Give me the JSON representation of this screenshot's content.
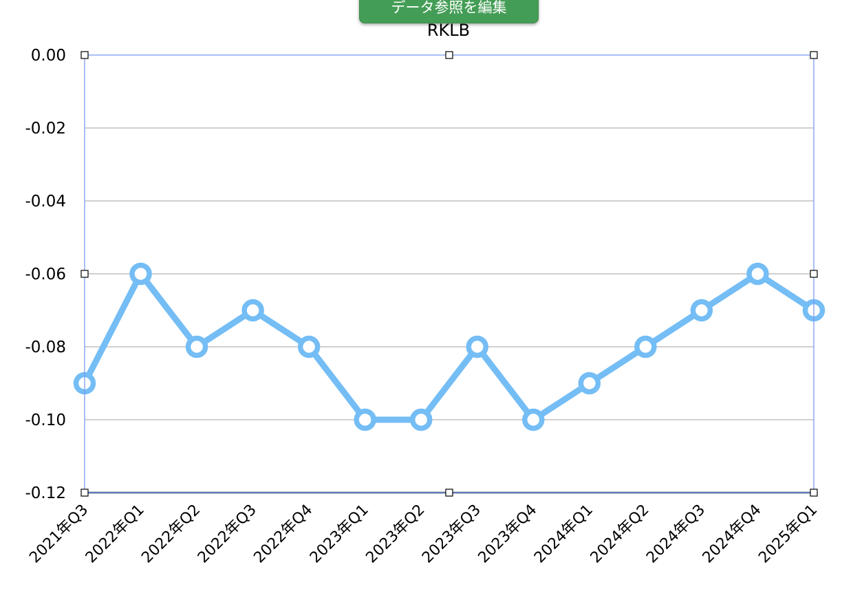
{
  "toolbar": {
    "edit_data_reference_label": "データ参照を編集"
  },
  "colors": {
    "series_line": "#74bdf5",
    "grid": "#b4b4b4",
    "selection": "#7b9cf2",
    "x_axis": "#2c3e50",
    "button_bg": "#449d56"
  },
  "chart_data": {
    "type": "line",
    "title": "RKLB",
    "xlabel": "",
    "ylabel": "",
    "categories": [
      "2021年Q3",
      "2022年Q1",
      "2022年Q2",
      "2022年Q3",
      "2022年Q4",
      "2023年Q1",
      "2023年Q2",
      "2023年Q3",
      "2023年Q4",
      "2024年Q1",
      "2024年Q2",
      "2024年Q3",
      "2024年Q4",
      "2025年Q1"
    ],
    "series": [
      {
        "values": [
          -0.09,
          -0.06,
          -0.08,
          -0.07,
          -0.08,
          -0.1,
          -0.1,
          -0.08,
          -0.1,
          -0.09,
          -0.08,
          -0.07,
          -0.06,
          -0.07
        ]
      }
    ],
    "ylim": [
      -0.12,
      0.0
    ],
    "yticks": [
      "0.00",
      "-0.02",
      "-0.04",
      "-0.06",
      "-0.08",
      "-0.10",
      "-0.12"
    ],
    "grid": true,
    "markers": "hollow-circle",
    "legend": "none",
    "selected": true
  }
}
